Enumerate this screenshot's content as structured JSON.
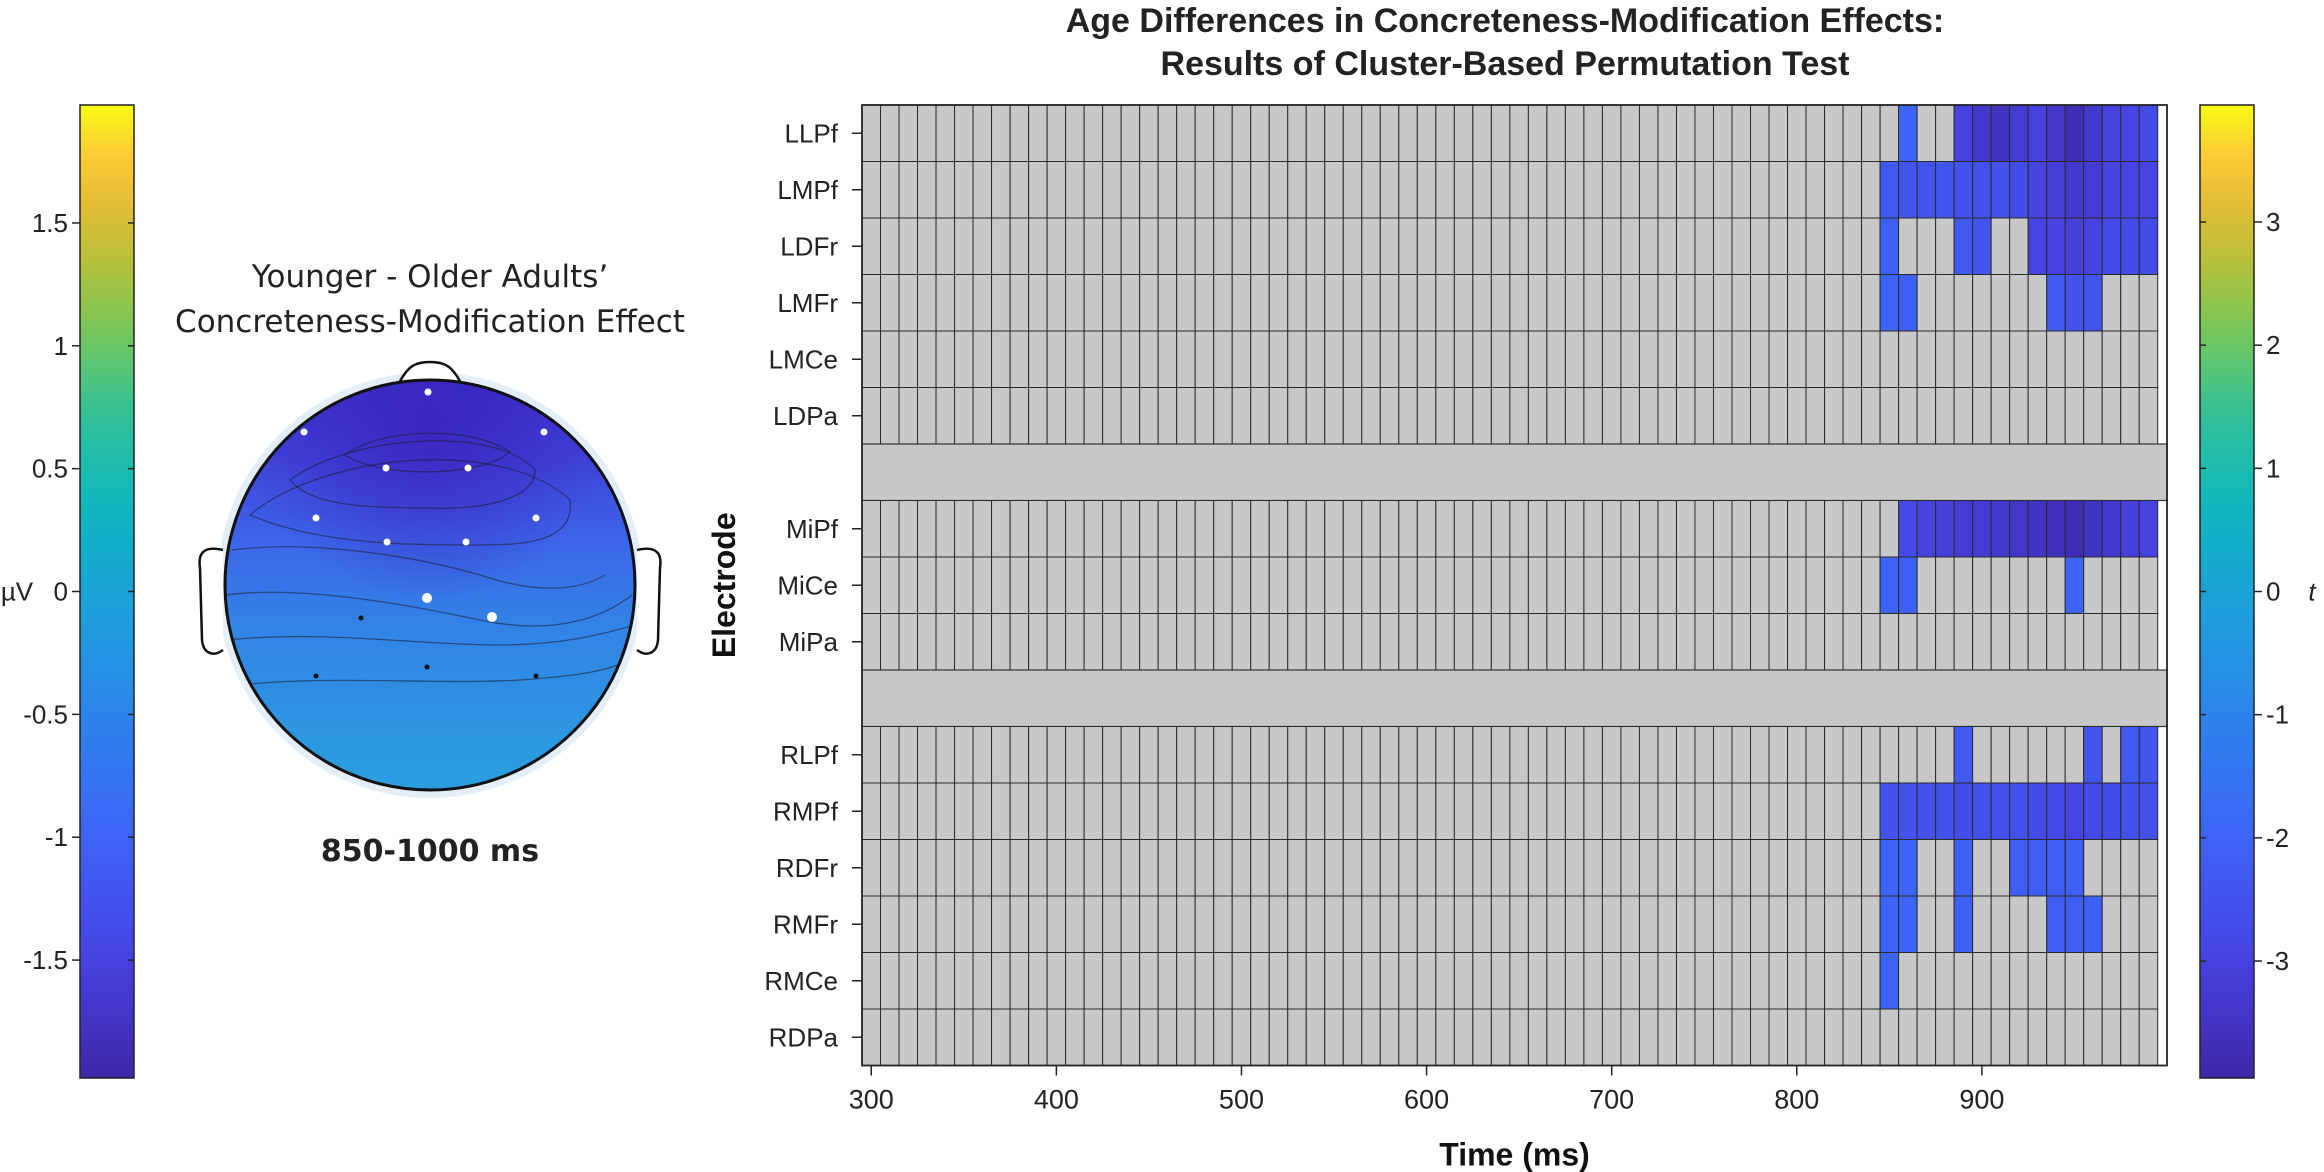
{
  "colors": {
    "background": "#ffffff",
    "empty_cell": "#c8c8c8",
    "cell_border": "#333333",
    "colormap": "parula"
  },
  "topoplot": {
    "title_line1": "Younger - Older Adults’",
    "title_line2": "Concreteness-Modification Effect",
    "time_window": "850-1000 ms"
  },
  "left_colorbar": {
    "unit_label": "µV",
    "ticks": [
      1.5,
      1,
      0.5,
      0,
      -0.5,
      -1,
      -1.5
    ],
    "tick_labels": [
      "1.5",
      "1",
      "0.5",
      "0",
      "-0.5",
      "-1",
      "-1.5"
    ],
    "range": [
      -1.98,
      1.98
    ]
  },
  "right_colorbar": {
    "unit_label": "t",
    "ticks": [
      3,
      2,
      1,
      0,
      -1,
      -2,
      -3
    ],
    "tick_labels": [
      "3",
      "2",
      "1",
      "0",
      "-1",
      "-2",
      "-3"
    ],
    "range": [
      -3.95,
      3.95
    ]
  },
  "chart_data": {
    "type": "heatmap",
    "title_line1": "Age Differences in Concreteness-Modification Effects:",
    "title_line2": "Results of Cluster-Based Permutation Test",
    "xlabel": "Time (ms)",
    "ylabel": "Electrode",
    "x_ticks": [
      300,
      400,
      500,
      600,
      700,
      800,
      900
    ],
    "xlim": [
      295,
      1000
    ],
    "time_bin_ms": 10,
    "time_start_ms": 295,
    "bins_per_row": 70,
    "empty_value_color": "#c8c8c8",
    "groups": [
      {
        "rows": [
          {
            "label": "LLPf",
            "cells": {
              "860": -2.0,
              "890": -3.0,
              "900": -3.3,
              "910": -3.5,
              "920": -3.2,
              "930": -3.0,
              "940": -3.4,
              "950": -3.7,
              "960": -3.3,
              "970": -3.0,
              "980": -2.9,
              "990": -2.8
            }
          },
          {
            "label": "LMPf",
            "cells": {
              "850": -2.3,
              "860": -2.4,
              "870": -2.4,
              "880": -2.4,
              "890": -2.5,
              "900": -2.6,
              "910": -2.6,
              "920": -2.7,
              "930": -3.0,
              "940": -3.1,
              "950": -3.3,
              "960": -3.2,
              "970": -3.0,
              "980": -2.9,
              "990": -2.9
            }
          },
          {
            "label": "LDFr",
            "cells": {
              "850": -2.1,
              "890": -2.3,
              "900": -2.4,
              "930": -2.9,
              "940": -3.0,
              "950": -3.1,
              "960": -3.0,
              "970": -2.8,
              "980": -2.7,
              "990": -2.7
            }
          },
          {
            "label": "LMFr",
            "cells": {
              "850": -2.0,
              "860": -2.1,
              "940": -2.3,
              "950": -2.5,
              "960": -2.4
            }
          },
          {
            "label": "LMCe",
            "cells": {}
          },
          {
            "label": "LDPa",
            "cells": {}
          }
        ]
      },
      {
        "rows": [
          {
            "label": "MiPf",
            "cells": {
              "860": -2.8,
              "870": -3.0,
              "880": -3.1,
              "890": -3.2,
              "900": -3.2,
              "910": -3.3,
              "920": -3.4,
              "930": -3.5,
              "940": -3.6,
              "950": -3.7,
              "960": -3.5,
              "970": -3.3,
              "980": -3.1,
              "990": -3.0
            }
          },
          {
            "label": "MiCe",
            "cells": {
              "850": -2.0,
              "860": -2.1,
              "950": -2.0
            }
          },
          {
            "label": "MiPa",
            "cells": {}
          }
        ]
      },
      {
        "rows": [
          {
            "label": "RLPf",
            "cells": {
              "890": -2.3,
              "960": -2.4,
              "980": -2.3,
              "990": -2.4
            }
          },
          {
            "label": "RMPf",
            "cells": {
              "850": -2.5,
              "860": -2.5,
              "870": -2.6,
              "880": -2.6,
              "890": -2.7,
              "900": -2.6,
              "910": -2.6,
              "920": -2.6,
              "930": -2.7,
              "940": -2.8,
              "950": -2.9,
              "960": -2.8,
              "970": -2.7,
              "980": -2.6,
              "990": -2.6
            }
          },
          {
            "label": "RDFr",
            "cells": {
              "850": -2.0,
              "860": -2.0,
              "890": -2.1,
              "920": -2.2,
              "930": -2.2,
              "940": -2.2,
              "950": -2.1
            }
          },
          {
            "label": "RMFr",
            "cells": {
              "850": -2.0,
              "860": -2.0,
              "890": -2.1,
              "940": -2.2,
              "950": -2.2,
              "960": -2.1
            }
          },
          {
            "label": "RMCe",
            "cells": {
              "850": -2.0
            }
          },
          {
            "label": "RDPa",
            "cells": {}
          }
        ]
      }
    ],
    "topoplot": {
      "electrodes_white": [
        "Fp",
        "F7",
        "F8",
        "AF3",
        "AF4",
        "F3",
        "F4",
        "FC3",
        "FC4",
        "Cz",
        "C4"
      ],
      "electrodes_black": [
        "C3",
        "P3",
        "Pz",
        "P4"
      ]
    }
  }
}
